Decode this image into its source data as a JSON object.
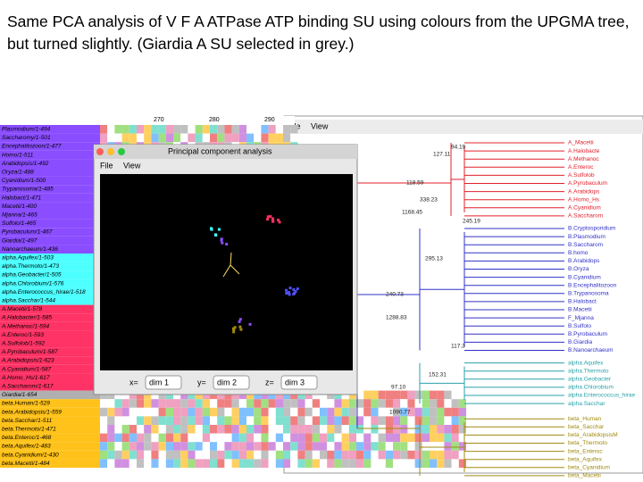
{
  "title": "Same PCA analysis of V F A ATPase ATP binding SU using colours from the UPGMA tree, but turned slightly. (Giardia A SU selected in grey.)",
  "alignment": {
    "ruler": [
      "270",
      "280",
      "290"
    ],
    "group_colors": {
      "B": "#8a4dff",
      "alpha": "#4dffff",
      "A": "#ff3366",
      "sel": "#b0b0b0",
      "beta": "#ffc21a"
    },
    "sequences": [
      {
        "name": "Plasmodium/1-494",
        "group": "B"
      },
      {
        "name": "Saccharomy/1-501",
        "group": "B"
      },
      {
        "name": "Encephalitozoon/1-477",
        "group": "B"
      },
      {
        "name": "Homo/1-511",
        "group": "B"
      },
      {
        "name": "Arabidopsis/1-492",
        "group": "B"
      },
      {
        "name": "Oryza/1-488",
        "group": "B"
      },
      {
        "name": "Cyanidium/1-500",
        "group": "B"
      },
      {
        "name": "Trypanosoma/1-485",
        "group": "B"
      },
      {
        "name": "Halobact/1-471",
        "group": "B"
      },
      {
        "name": "Macetii/1-400",
        "group": "B"
      },
      {
        "name": "Mjanna/1-465",
        "group": "B"
      },
      {
        "name": "Sulfolo/1-465",
        "group": "B"
      },
      {
        "name": "Pyrobaculum/1-467",
        "group": "B"
      },
      {
        "name": "Giardia/1-497",
        "group": "B"
      },
      {
        "name": "Nanoarchaeum/1-436",
        "group": "B"
      },
      {
        "name": "alpha.Aquifex/1-503",
        "group": "alpha"
      },
      {
        "name": "alpha.Thermoto/1-473",
        "group": "alpha"
      },
      {
        "name": "alpha.Geobacter/1-505",
        "group": "alpha"
      },
      {
        "name": "alpha.Chlorobium/1-576",
        "group": "alpha"
      },
      {
        "name": "alpha.Enterococcus_hirae/1-518",
        "group": "alpha"
      },
      {
        "name": "alpha.Sacchar/1-544",
        "group": "alpha"
      },
      {
        "name": "A.Macetii/1-578",
        "group": "A"
      },
      {
        "name": "A.Halobacter/1-585",
        "group": "A"
      },
      {
        "name": "A.Methanoc/1-594",
        "group": "A"
      },
      {
        "name": "A.Enteroc/1-593",
        "group": "A"
      },
      {
        "name": "A.Sulfolob/1-592",
        "group": "A"
      },
      {
        "name": "A.Pyrobaculum/1-587",
        "group": "A"
      },
      {
        "name": "A.Arabidopsis/1-623",
        "group": "A"
      },
      {
        "name": "A.Cyanidium/1-587",
        "group": "A"
      },
      {
        "name": "A.Homo_Hs/1-617",
        "group": "A"
      },
      {
        "name": "A.Saccharom/1-617",
        "group": "A"
      },
      {
        "name": "Giardia/1-654",
        "group": "sel"
      },
      {
        "name": "beta.Human/1-529",
        "group": "beta"
      },
      {
        "name": "beta.Arabidopsis/1-559",
        "group": "beta"
      },
      {
        "name": "beta.Sacchar/1-511",
        "group": "beta"
      },
      {
        "name": "beta.Thermoto/1-471",
        "group": "beta"
      },
      {
        "name": "beta.Enteroc/1-468",
        "group": "beta"
      },
      {
        "name": "beta.Aquifex/1-483",
        "group": "beta"
      },
      {
        "name": "beta.Cyanidium/1-430",
        "group": "beta"
      },
      {
        "name": "beta.Macetii/1-484",
        "group": "beta"
      }
    ]
  },
  "pca": {
    "title": "Principal component analysis",
    "menu": [
      "File",
      "View"
    ],
    "axes": [
      {
        "label": "x=",
        "value": "dim 1"
      },
      {
        "label": "y=",
        "value": "dim 2"
      },
      {
        "label": "z=",
        "value": "dim 3"
      }
    ]
  },
  "tree": {
    "menu": [
      "File",
      "View"
    ],
    "leaves": [
      {
        "name": "A_Macetii",
        "color": "#e0202a"
      },
      {
        "name": "A.Halobacte",
        "color": "#e0202a"
      },
      {
        "name": "A.Methanoc",
        "color": "#e0202a"
      },
      {
        "name": "A.Enteroc",
        "color": "#e0202a"
      },
      {
        "name": "A.Sulfolob",
        "color": "#e0202a"
      },
      {
        "name": "A.Pyrobaculum",
        "color": "#e0202a"
      },
      {
        "name": "A.Arabidops",
        "color": "#e0202a"
      },
      {
        "name": "A.Homo_Hs",
        "color": "#e0202a"
      },
      {
        "name": "A.Cyanidium",
        "color": "#e0202a"
      },
      {
        "name": "A.Saccharom",
        "color": "#e0202a"
      },
      {
        "name": "B.Cryptosporidium",
        "color": "#3030c8"
      },
      {
        "name": "B.Plasmodium",
        "color": "#3030c8"
      },
      {
        "name": "B.Saccharom",
        "color": "#3030c8"
      },
      {
        "name": "B.homo",
        "color": "#3030c8"
      },
      {
        "name": "B.Arabidops",
        "color": "#3030c8"
      },
      {
        "name": "B.Oryza",
        "color": "#3030c8"
      },
      {
        "name": "B.Cyanidium",
        "color": "#3030c8"
      },
      {
        "name": "B.Encephalitozoon",
        "color": "#3030c8"
      },
      {
        "name": "B.Trypanosoma",
        "color": "#3030c8"
      },
      {
        "name": "B.Halobact",
        "color": "#3030c8"
      },
      {
        "name": "B.Macetii",
        "color": "#3030c8"
      },
      {
        "name": "F_Mjanna",
        "color": "#3030c8"
      },
      {
        "name": "B.Sulfolo",
        "color": "#3030c8"
      },
      {
        "name": "B.Pyrobaculum",
        "color": "#3030c8"
      },
      {
        "name": "B.Giardia",
        "color": "#3030c8"
      },
      {
        "name": "B.Nanoarchaeum",
        "color": "#3030c8"
      },
      {
        "name": "alpha.Aquifex",
        "color": "#2aa0a8"
      },
      {
        "name": "alpha.Thermoto",
        "color": "#2aa0a8"
      },
      {
        "name": "alpha.Geobacter",
        "color": "#2aa0a8"
      },
      {
        "name": "alpha.Chlorobium",
        "color": "#2aa0a8"
      },
      {
        "name": "alpha.Enterococcus_hirae",
        "color": "#2aa0a8"
      },
      {
        "name": "alpha.Sacchar",
        "color": "#2aa0a8"
      },
      {
        "name": "beta_Human",
        "color": "#a08a10"
      },
      {
        "name": "beta_Sacchar",
        "color": "#a08a10"
      },
      {
        "name": "beta_ArabidopsisM",
        "color": "#a08a10"
      },
      {
        "name": "beta_Thermoto",
        "color": "#a08a10"
      },
      {
        "name": "beta_Enteroc",
        "color": "#a08a10"
      },
      {
        "name": "beta_Aquifex",
        "color": "#a08a10"
      },
      {
        "name": "beta_Cyanidium",
        "color": "#a08a10"
      },
      {
        "name": "beta_Macetii",
        "color": "#a08a10"
      }
    ],
    "node_labels": [
      "94.19",
      "127.11",
      "118.59",
      "338.23",
      "1168.45",
      "245.19",
      "295.13",
      "240.73",
      "1288.83",
      "117.3",
      "152.31",
      "97.10",
      "1090.77"
    ]
  }
}
